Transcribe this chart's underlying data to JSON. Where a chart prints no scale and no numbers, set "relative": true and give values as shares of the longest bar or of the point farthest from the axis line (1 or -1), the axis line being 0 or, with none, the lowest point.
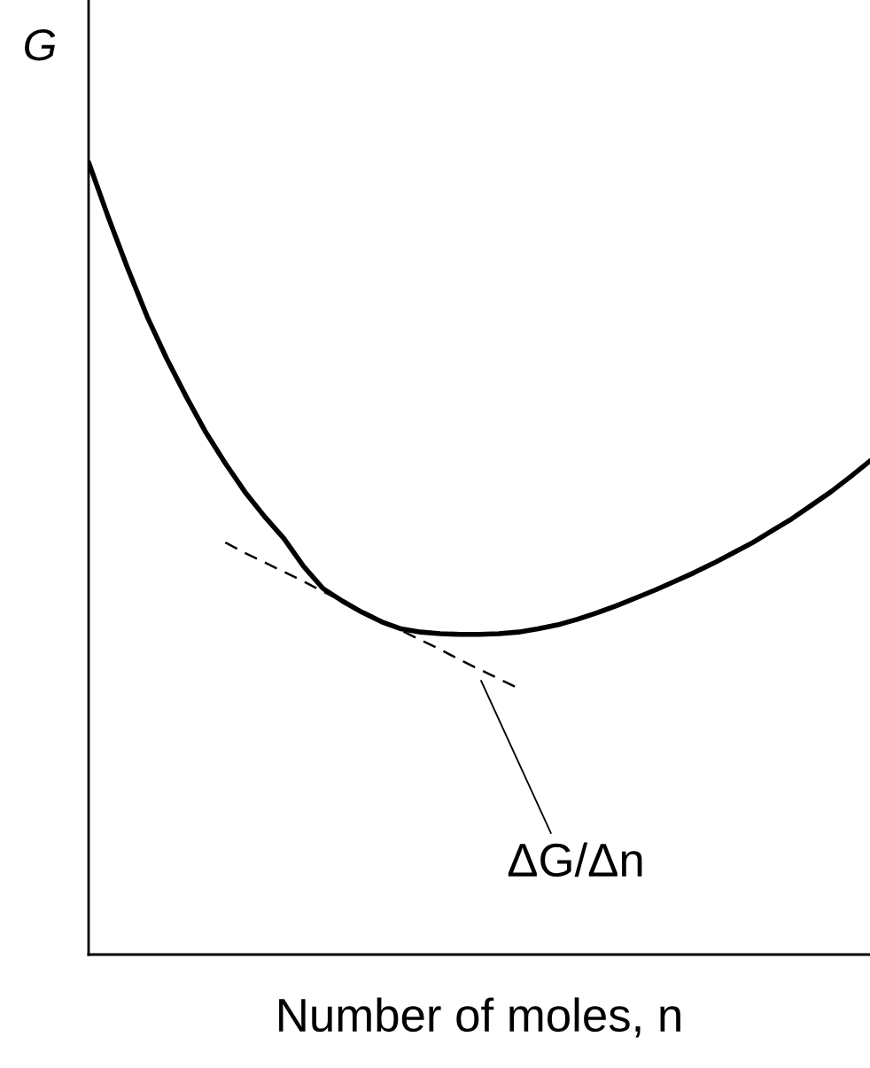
{
  "chart_data": {
    "type": "line",
    "relative": true,
    "xlabel": "Number of moles, n",
    "ylabel": "G",
    "categories": [
      null,
      null,
      null,
      null,
      null,
      null,
      null,
      null,
      null,
      null,
      null,
      null,
      null,
      null,
      null,
      null,
      null,
      null,
      null,
      null,
      null,
      null,
      null,
      null,
      null,
      null,
      null,
      null,
      null,
      null,
      null,
      null,
      null,
      null,
      null,
      null,
      null,
      null,
      null,
      null,
      null
    ],
    "series": [
      {
        "color": "#000000",
        "line_style": "solid",
        "values": [
          1,
          0.931,
          0.866,
          0.805,
          0.752,
          0.704,
          0.659,
          0.62,
          0.584,
          0.553,
          0.525,
          0.49,
          0.462,
          0.446,
          0.432,
          0.42,
          0.411,
          0.407,
          0.405,
          0.404,
          0.404,
          0.405,
          0.407,
          0.411,
          0.416,
          0.423,
          0.431,
          0.44,
          0.45,
          0.46,
          0.471,
          0.482,
          0.494,
          0.507,
          0.52,
          0.535,
          0.55,
          0.567,
          0.584,
          0.603,
          0.623
        ]
      },
      {
        "color": "#000000",
        "line_style": "dashed",
        "values": [
          null,
          null,
          null,
          null,
          null,
          null,
          null,
          0.52,
          0.507,
          0.495,
          0.483,
          0.471,
          0.458,
          0.446,
          0.434,
          0.421,
          0.409,
          0.397,
          0.385,
          0.372,
          0.36,
          0.348,
          0.336,
          null,
          null,
          null,
          null,
          null,
          null,
          null,
          null,
          null,
          null,
          null,
          null,
          null,
          null,
          null,
          null,
          null,
          null
        ]
      }
    ],
    "annotations": [
      "ΔG/Δn"
    ],
    "legend": false,
    "grid": false
  }
}
